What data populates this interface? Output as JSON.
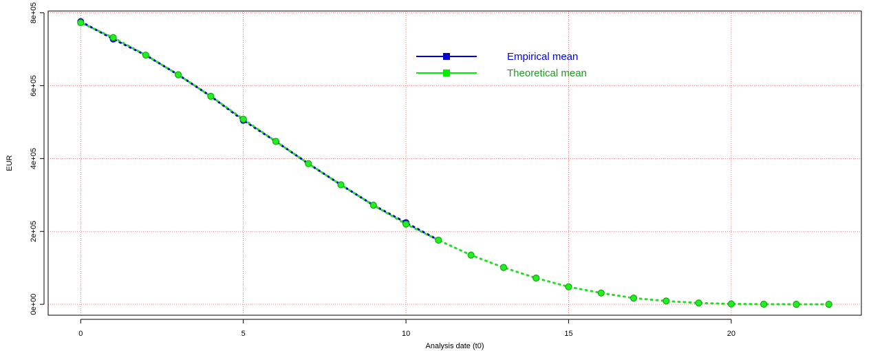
{
  "chart_data": {
    "type": "line",
    "xlabel": "Analysis date (t0)",
    "ylabel": "EUR",
    "xlim": [
      -1,
      24
    ],
    "ylim": [
      -30000,
      805000
    ],
    "x_ticks": [
      0,
      5,
      10,
      15,
      20
    ],
    "x_tick_labels": [
      "0",
      "5",
      "10",
      "15",
      "20"
    ],
    "y_ticks": [
      0,
      200000,
      400000,
      600000,
      800000
    ],
    "y_tick_labels": [
      "0e+00",
      "2e+05",
      "4e+05",
      "6e+05",
      "8e+05"
    ],
    "grid": true,
    "legend_position": "top-center",
    "series": [
      {
        "name": "Empirical mean",
        "color": "#0000cc",
        "x": [
          0,
          1,
          5,
          10
        ],
        "values": [
          776000,
          728000,
          505000,
          224000
        ]
      },
      {
        "name": "Theoretical mean",
        "color": "#00ee00",
        "x": [
          0,
          1,
          2,
          3,
          4,
          5,
          6,
          7,
          8,
          9,
          10,
          11,
          12,
          13,
          14,
          15,
          16,
          17,
          18,
          19,
          20,
          21,
          22,
          23
        ],
        "values": [
          773000,
          732000,
          684000,
          630000,
          571000,
          508000,
          447000,
          386000,
          328000,
          272000,
          220000,
          176000,
          135000,
          101000,
          72000,
          48000,
          31000,
          17000,
          9000,
          3500,
          1000,
          300,
          50,
          0
        ]
      }
    ],
    "empirical_line_x": [
      0,
      1,
      2,
      3,
      4,
      5,
      6,
      7,
      8,
      9,
      10,
      11
    ],
    "empirical_line_values": [
      776000,
      728000,
      684000,
      630000,
      571000,
      505000,
      447000,
      386000,
      328000,
      272000,
      224000,
      176000
    ]
  }
}
